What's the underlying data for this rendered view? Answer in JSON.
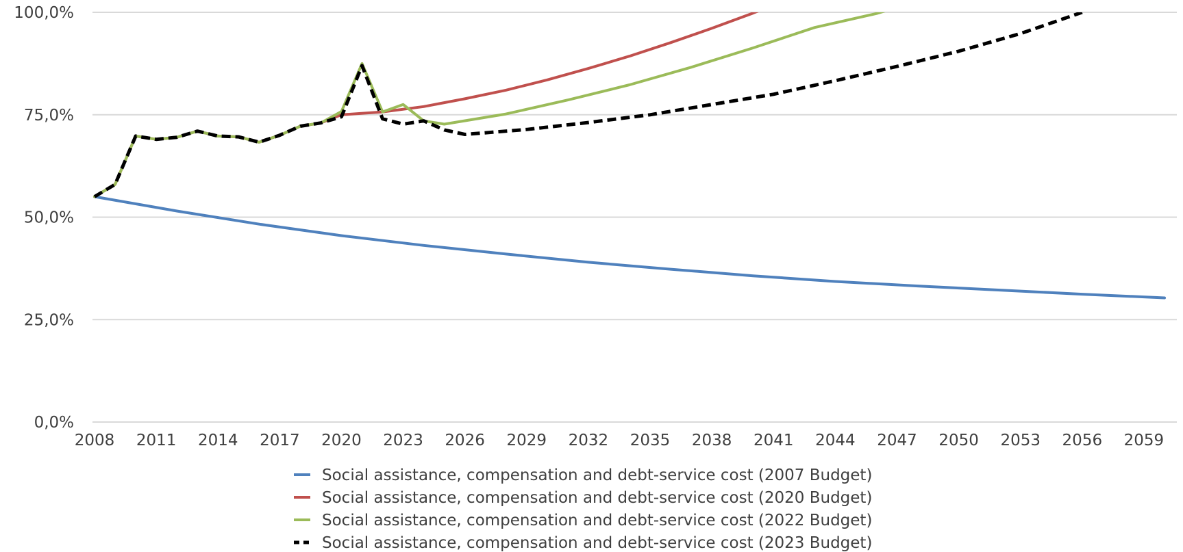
{
  "chart_data": {
    "type": "line",
    "title": "",
    "xlabel": "",
    "ylabel": "",
    "xlim": [
      2008,
      2060
    ],
    "ylim": [
      0,
      100
    ],
    "y_ticks": [
      {
        "value": 0,
        "label": "0,0%"
      },
      {
        "value": 25,
        "label": "25,0%"
      },
      {
        "value": 50,
        "label": "50,0%"
      },
      {
        "value": 75,
        "label": "75,0%"
      },
      {
        "value": 100,
        "label": "100,0%"
      }
    ],
    "x_ticks": [
      {
        "value": 2008,
        "label": "2008"
      },
      {
        "value": 2011,
        "label": "2011"
      },
      {
        "value": 2014,
        "label": "2014"
      },
      {
        "value": 2017,
        "label": "2017"
      },
      {
        "value": 2020,
        "label": "2020"
      },
      {
        "value": 2023,
        "label": "2023"
      },
      {
        "value": 2026,
        "label": "2026"
      },
      {
        "value": 2029,
        "label": "2029"
      },
      {
        "value": 2032,
        "label": "2032"
      },
      {
        "value": 2035,
        "label": "2035"
      },
      {
        "value": 2038,
        "label": "2038"
      },
      {
        "value": 2041,
        "label": "2041"
      },
      {
        "value": 2044,
        "label": "2044"
      },
      {
        "value": 2047,
        "label": "2047"
      },
      {
        "value": 2050,
        "label": "2050"
      },
      {
        "value": 2053,
        "label": "2053"
      },
      {
        "value": 2056,
        "label": "2056"
      },
      {
        "value": 2059,
        "label": "2059"
      }
    ],
    "grid": true,
    "legend_position": "bottom",
    "series": [
      {
        "name": "Social assistance, compensation and debt-service cost (2007 Budget)",
        "color": "#4f81bd",
        "dash": "solid",
        "x": [
          2008,
          2012,
          2016,
          2020,
          2024,
          2028,
          2032,
          2036,
          2040,
          2044,
          2048,
          2052,
          2056,
          2060
        ],
        "y": [
          55.0,
          51.5,
          48.3,
          45.5,
          43.1,
          41.0,
          39.0,
          37.3,
          35.7,
          34.3,
          33.2,
          32.2,
          31.2,
          30.3
        ]
      },
      {
        "name": "Social assistance, compensation and debt-service cost (2020 Budget)",
        "color": "#c0504d",
        "dash": "solid",
        "x": [
          2008,
          2009,
          2010,
          2011,
          2012,
          2013,
          2014,
          2015,
          2016,
          2017,
          2018,
          2019,
          2020,
          2022,
          2024,
          2026,
          2028,
          2030,
          2032,
          2034,
          2036,
          2038,
          2040,
          2041
        ],
        "y": [
          55.0,
          58.0,
          69.8,
          69.0,
          69.5,
          71.0,
          69.8,
          69.6,
          68.3,
          70.0,
          72.2,
          73.0,
          75.0,
          75.7,
          77.0,
          78.9,
          81.0,
          83.5,
          86.3,
          89.3,
          92.6,
          96.1,
          99.8,
          101.8
        ]
      },
      {
        "name": "Social assistance, compensation and debt-service cost (2022 Budget)",
        "color": "#9bbb59",
        "dash": "solid",
        "x": [
          2008,
          2009,
          2010,
          2011,
          2012,
          2013,
          2014,
          2015,
          2016,
          2017,
          2018,
          2019,
          2020,
          2021,
          2022,
          2023,
          2024,
          2025,
          2028,
          2031,
          2034,
          2037,
          2040,
          2043,
          2046,
          2047
        ],
        "y": [
          55.0,
          58.0,
          69.8,
          69.0,
          69.5,
          71.0,
          69.8,
          69.6,
          68.3,
          70.0,
          72.2,
          73.0,
          75.8,
          87.5,
          75.7,
          77.5,
          73.5,
          72.7,
          75.2,
          78.6,
          82.3,
          86.6,
          91.3,
          96.3,
          99.7,
          101.2
        ]
      },
      {
        "name": "Social assistance, compensation and debt-service cost (2023 Budget)",
        "color": "#000000",
        "dash": "dashed",
        "x": [
          2008,
          2009,
          2010,
          2011,
          2012,
          2013,
          2014,
          2015,
          2016,
          2017,
          2018,
          2019,
          2020,
          2021,
          2022,
          2023,
          2024,
          2025,
          2026,
          2029,
          2032,
          2035,
          2038,
          2041,
          2044,
          2047,
          2050,
          2053,
          2056
        ],
        "y": [
          55.0,
          58.0,
          69.8,
          69.0,
          69.5,
          71.0,
          69.8,
          69.6,
          68.3,
          70.0,
          72.2,
          73.0,
          74.5,
          87.0,
          74.0,
          72.7,
          73.5,
          71.3,
          70.2,
          71.4,
          73.1,
          75.0,
          77.5,
          80.0,
          83.3,
          86.8,
          90.5,
          94.8,
          100.0
        ]
      }
    ]
  }
}
